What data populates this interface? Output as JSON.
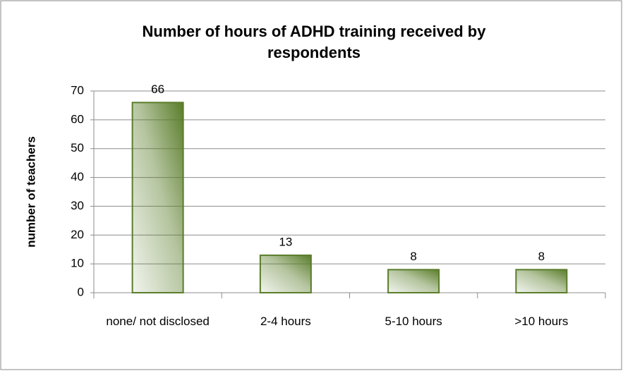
{
  "chart_data": {
    "type": "bar",
    "title": "Number of hours of ADHD training received by respondents",
    "y_label": "number of teachers",
    "categories": [
      "none/ not disclosed",
      "2-4 hours",
      "5-10 hours",
      ">10 hours"
    ],
    "values": [
      66,
      13,
      8,
      8
    ],
    "color": "#5a7d2a",
    "ylim": [
      0,
      70
    ],
    "yticks": [
      0,
      10,
      20,
      30,
      40,
      50,
      60,
      70
    ],
    "grid": true
  }
}
